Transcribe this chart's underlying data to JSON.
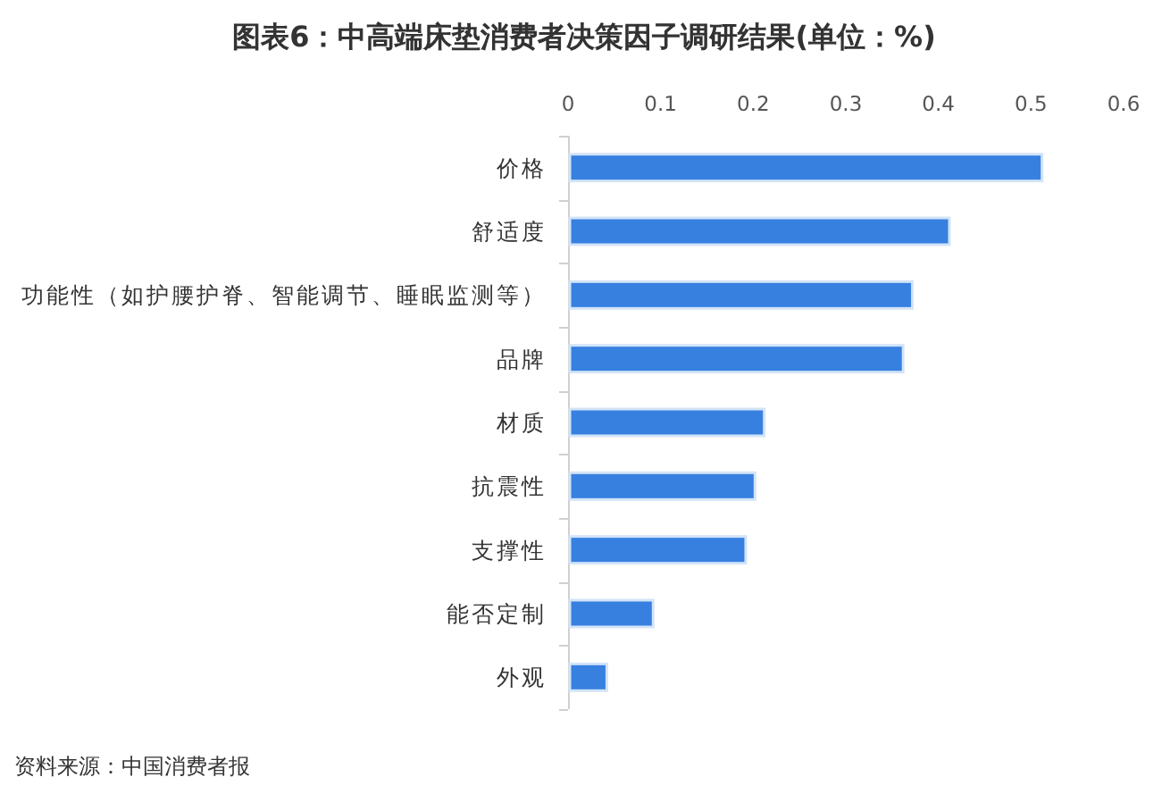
{
  "chart_data": {
    "type": "bar",
    "orientation": "horizontal",
    "title": "图表6：中高端床垫消费者决策因子调研结果(单位：%)",
    "categories": [
      "价格",
      "舒适度",
      "功能性（如护腰护脊、智能调节、睡眠监测等）",
      "品牌",
      "材质",
      "抗震性",
      "支撑性",
      "能否定制",
      "外观"
    ],
    "values": [
      0.51,
      0.41,
      0.37,
      0.36,
      0.21,
      0.2,
      0.19,
      0.09,
      0.04
    ],
    "color": "#3780e0",
    "xlim": [
      0,
      0.6
    ],
    "xticks": [
      0,
      0.1,
      0.2,
      0.3,
      0.4,
      0.5,
      0.6
    ],
    "annotations": [
      "资料来源：中国消费者报"
    ]
  }
}
